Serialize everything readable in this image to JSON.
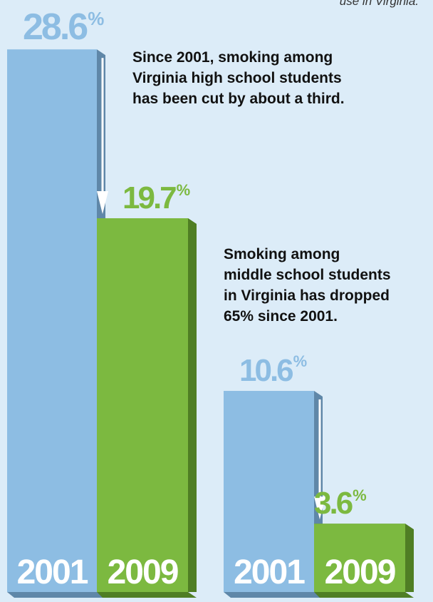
{
  "top_caption": "use in Virginia.",
  "notes": {
    "high_school": [
      "Since 2001, smoking among",
      "Virginia high school students",
      "has been cut by about a third."
    ],
    "middle_school": [
      "Smoking among",
      "middle school students",
      "in Virginia has dropped",
      "65% since 2001."
    ]
  },
  "colors": {
    "y2001": "#8dbde3",
    "y2001_side": "#5f87a8",
    "y2009": "#7cb940",
    "y2009_side": "#4f7e24",
    "arrow": "#ffffff",
    "background": "#dcecf8"
  },
  "chart_data": [
    {
      "type": "bar",
      "categories": [
        "2001",
        "2009"
      ],
      "values": [
        28.6,
        19.7
      ],
      "value_labels": [
        "28.6",
        "19.7"
      ],
      "unit": "%",
      "annotation": "Since 2001, smoking among Virginia high school students has been cut by about a third."
    },
    {
      "type": "bar",
      "categories": [
        "2001",
        "2009"
      ],
      "values": [
        10.6,
        3.6
      ],
      "value_labels": [
        "10.6",
        "3.6"
      ],
      "unit": "%",
      "annotation": "Smoking among middle school students in Virginia has dropped 65% since 2001."
    }
  ]
}
